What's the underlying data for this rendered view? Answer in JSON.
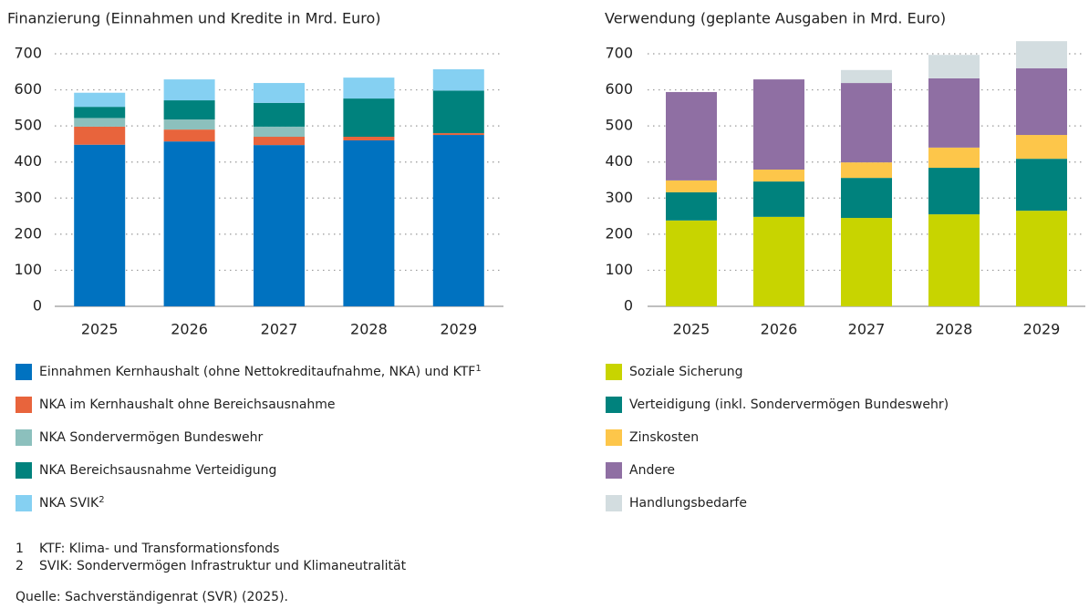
{
  "chart_data": [
    {
      "type": "stacked_bar",
      "title": "Finanzierung (Einnahmen und Kredite in Mrd. Euro)",
      "categories": [
        "2025",
        "2026",
        "2027",
        "2028",
        "2029"
      ],
      "ylim": [
        0,
        700
      ],
      "yticks": [
        0,
        100,
        200,
        300,
        400,
        500,
        600,
        700
      ],
      "grid": true,
      "series": [
        {
          "name": "Einnahmen Kernhaushalt (ohne Nettokreditaufnahme, NKA) und KTF",
          "note": "1",
          "color": "#0072c0",
          "values": [
            448,
            457,
            447,
            460,
            475
          ]
        },
        {
          "name": "NKA im Kernhaushalt ohne Bereichsausnahme",
          "color": "#e8643c",
          "values": [
            50,
            33,
            23,
            10,
            5
          ]
        },
        {
          "name": "NKA Sondervermögen Bundeswehr",
          "color": "#8cc0bd",
          "values": [
            24,
            28,
            28,
            0,
            0
          ]
        },
        {
          "name": "NKA Bereichsausnahme Verteidigung",
          "color": "#00827d",
          "values": [
            31,
            53,
            66,
            106,
            118
          ]
        },
        {
          "name": "NKA SVIK",
          "note": "2",
          "color": "#85d0f2",
          "values": [
            39,
            58,
            55,
            58,
            59
          ]
        }
      ]
    },
    {
      "type": "stacked_bar",
      "title": "Verwendung (geplante Ausgaben in Mrd. Euro)",
      "categories": [
        "2025",
        "2026",
        "2027",
        "2028",
        "2029"
      ],
      "ylim": [
        0,
        700
      ],
      "yticks": [
        0,
        100,
        200,
        300,
        400,
        500,
        600,
        700
      ],
      "grid": true,
      "series": [
        {
          "name": "Soziale Sicherung",
          "color": "#c8d400",
          "values": [
            238,
            248,
            245,
            255,
            265
          ]
        },
        {
          "name": "Verteidigung (inkl. Sondervermögen Bundeswehr)",
          "color": "#00827d",
          "values": [
            78,
            98,
            111,
            129,
            144
          ]
        },
        {
          "name": "Zinskosten",
          "color": "#fdc64a",
          "values": [
            33,
            33,
            43,
            56,
            66
          ]
        },
        {
          "name": "Andere",
          "color": "#8f6fa3",
          "values": [
            245,
            250,
            220,
            192,
            185
          ]
        },
        {
          "name": "Handlungsbedarfe",
          "color": "#d3dde0",
          "values": [
            0,
            0,
            36,
            65,
            75
          ]
        }
      ]
    }
  ],
  "footnotes": [
    {
      "marker": "1",
      "text": "KTF: Klima- und Transformationsfonds"
    },
    {
      "marker": "2",
      "text": "SVIK: Sondervermögen Infrastruktur und Klimaneutralität"
    }
  ],
  "source": "Quelle: Sachverständigenrat (SVR) (2025)."
}
